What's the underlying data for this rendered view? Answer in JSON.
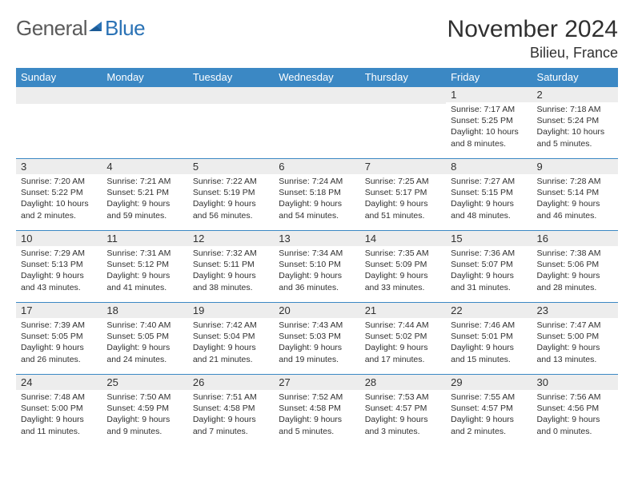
{
  "logo": {
    "word1": "General",
    "word2": "Blue"
  },
  "title": "November 2024",
  "location": "Bilieu, France",
  "colors": {
    "header_bg": "#3b88c4",
    "header_text": "#ffffff",
    "daynum_bg": "#ededed",
    "border": "#3b88c4",
    "text": "#303030",
    "logo_gray": "#5a5a5a",
    "logo_blue": "#2a72b5"
  },
  "day_headers": [
    "Sunday",
    "Monday",
    "Tuesday",
    "Wednesday",
    "Thursday",
    "Friday",
    "Saturday"
  ],
  "weeks": [
    [
      {
        "day": "",
        "sunrise": "",
        "sunset": "",
        "daylight": ""
      },
      {
        "day": "",
        "sunrise": "",
        "sunset": "",
        "daylight": ""
      },
      {
        "day": "",
        "sunrise": "",
        "sunset": "",
        "daylight": ""
      },
      {
        "day": "",
        "sunrise": "",
        "sunset": "",
        "daylight": ""
      },
      {
        "day": "",
        "sunrise": "",
        "sunset": "",
        "daylight": ""
      },
      {
        "day": "1",
        "sunrise": "Sunrise: 7:17 AM",
        "sunset": "Sunset: 5:25 PM",
        "daylight": "Daylight: 10 hours and 8 minutes."
      },
      {
        "day": "2",
        "sunrise": "Sunrise: 7:18 AM",
        "sunset": "Sunset: 5:24 PM",
        "daylight": "Daylight: 10 hours and 5 minutes."
      }
    ],
    [
      {
        "day": "3",
        "sunrise": "Sunrise: 7:20 AM",
        "sunset": "Sunset: 5:22 PM",
        "daylight": "Daylight: 10 hours and 2 minutes."
      },
      {
        "day": "4",
        "sunrise": "Sunrise: 7:21 AM",
        "sunset": "Sunset: 5:21 PM",
        "daylight": "Daylight: 9 hours and 59 minutes."
      },
      {
        "day": "5",
        "sunrise": "Sunrise: 7:22 AM",
        "sunset": "Sunset: 5:19 PM",
        "daylight": "Daylight: 9 hours and 56 minutes."
      },
      {
        "day": "6",
        "sunrise": "Sunrise: 7:24 AM",
        "sunset": "Sunset: 5:18 PM",
        "daylight": "Daylight: 9 hours and 54 minutes."
      },
      {
        "day": "7",
        "sunrise": "Sunrise: 7:25 AM",
        "sunset": "Sunset: 5:17 PM",
        "daylight": "Daylight: 9 hours and 51 minutes."
      },
      {
        "day": "8",
        "sunrise": "Sunrise: 7:27 AM",
        "sunset": "Sunset: 5:15 PM",
        "daylight": "Daylight: 9 hours and 48 minutes."
      },
      {
        "day": "9",
        "sunrise": "Sunrise: 7:28 AM",
        "sunset": "Sunset: 5:14 PM",
        "daylight": "Daylight: 9 hours and 46 minutes."
      }
    ],
    [
      {
        "day": "10",
        "sunrise": "Sunrise: 7:29 AM",
        "sunset": "Sunset: 5:13 PM",
        "daylight": "Daylight: 9 hours and 43 minutes."
      },
      {
        "day": "11",
        "sunrise": "Sunrise: 7:31 AM",
        "sunset": "Sunset: 5:12 PM",
        "daylight": "Daylight: 9 hours and 41 minutes."
      },
      {
        "day": "12",
        "sunrise": "Sunrise: 7:32 AM",
        "sunset": "Sunset: 5:11 PM",
        "daylight": "Daylight: 9 hours and 38 minutes."
      },
      {
        "day": "13",
        "sunrise": "Sunrise: 7:34 AM",
        "sunset": "Sunset: 5:10 PM",
        "daylight": "Daylight: 9 hours and 36 minutes."
      },
      {
        "day": "14",
        "sunrise": "Sunrise: 7:35 AM",
        "sunset": "Sunset: 5:09 PM",
        "daylight": "Daylight: 9 hours and 33 minutes."
      },
      {
        "day": "15",
        "sunrise": "Sunrise: 7:36 AM",
        "sunset": "Sunset: 5:07 PM",
        "daylight": "Daylight: 9 hours and 31 minutes."
      },
      {
        "day": "16",
        "sunrise": "Sunrise: 7:38 AM",
        "sunset": "Sunset: 5:06 PM",
        "daylight": "Daylight: 9 hours and 28 minutes."
      }
    ],
    [
      {
        "day": "17",
        "sunrise": "Sunrise: 7:39 AM",
        "sunset": "Sunset: 5:05 PM",
        "daylight": "Daylight: 9 hours and 26 minutes."
      },
      {
        "day": "18",
        "sunrise": "Sunrise: 7:40 AM",
        "sunset": "Sunset: 5:05 PM",
        "daylight": "Daylight: 9 hours and 24 minutes."
      },
      {
        "day": "19",
        "sunrise": "Sunrise: 7:42 AM",
        "sunset": "Sunset: 5:04 PM",
        "daylight": "Daylight: 9 hours and 21 minutes."
      },
      {
        "day": "20",
        "sunrise": "Sunrise: 7:43 AM",
        "sunset": "Sunset: 5:03 PM",
        "daylight": "Daylight: 9 hours and 19 minutes."
      },
      {
        "day": "21",
        "sunrise": "Sunrise: 7:44 AM",
        "sunset": "Sunset: 5:02 PM",
        "daylight": "Daylight: 9 hours and 17 minutes."
      },
      {
        "day": "22",
        "sunrise": "Sunrise: 7:46 AM",
        "sunset": "Sunset: 5:01 PM",
        "daylight": "Daylight: 9 hours and 15 minutes."
      },
      {
        "day": "23",
        "sunrise": "Sunrise: 7:47 AM",
        "sunset": "Sunset: 5:00 PM",
        "daylight": "Daylight: 9 hours and 13 minutes."
      }
    ],
    [
      {
        "day": "24",
        "sunrise": "Sunrise: 7:48 AM",
        "sunset": "Sunset: 5:00 PM",
        "daylight": "Daylight: 9 hours and 11 minutes."
      },
      {
        "day": "25",
        "sunrise": "Sunrise: 7:50 AM",
        "sunset": "Sunset: 4:59 PM",
        "daylight": "Daylight: 9 hours and 9 minutes."
      },
      {
        "day": "26",
        "sunrise": "Sunrise: 7:51 AM",
        "sunset": "Sunset: 4:58 PM",
        "daylight": "Daylight: 9 hours and 7 minutes."
      },
      {
        "day": "27",
        "sunrise": "Sunrise: 7:52 AM",
        "sunset": "Sunset: 4:58 PM",
        "daylight": "Daylight: 9 hours and 5 minutes."
      },
      {
        "day": "28",
        "sunrise": "Sunrise: 7:53 AM",
        "sunset": "Sunset: 4:57 PM",
        "daylight": "Daylight: 9 hours and 3 minutes."
      },
      {
        "day": "29",
        "sunrise": "Sunrise: 7:55 AM",
        "sunset": "Sunset: 4:57 PM",
        "daylight": "Daylight: 9 hours and 2 minutes."
      },
      {
        "day": "30",
        "sunrise": "Sunrise: 7:56 AM",
        "sunset": "Sunset: 4:56 PM",
        "daylight": "Daylight: 9 hours and 0 minutes."
      }
    ]
  ]
}
